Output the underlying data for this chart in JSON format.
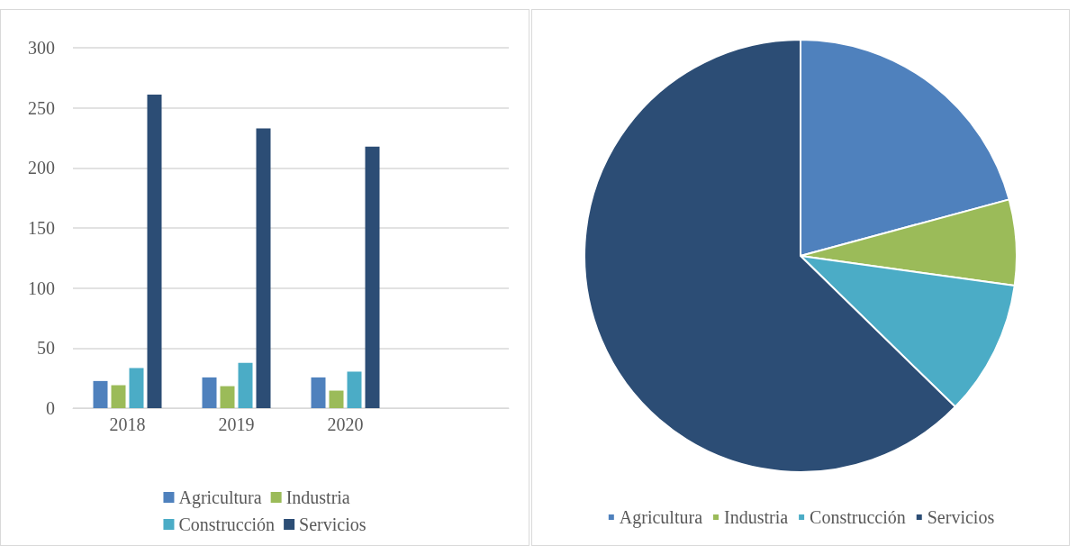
{
  "chart_data": [
    {
      "type": "bar",
      "categories": [
        "2018",
        "2019",
        "2020",
        null
      ],
      "series": [
        {
          "name": "Agricultura",
          "color": "#4f81bd",
          "values": [
            22.6,
            25.6,
            25.6,
            null
          ]
        },
        {
          "name": "Industria",
          "color": "#9bbb59",
          "values": [
            19.1,
            18.3,
            14.6,
            null
          ]
        },
        {
          "name": "Construcción",
          "color": "#4bacc6",
          "values": [
            33.4,
            37.7,
            30.4,
            null
          ]
        },
        {
          "name": "Servicios",
          "color": "#2c4d75",
          "values": [
            261,
            232.9,
            217.6,
            null
          ]
        }
      ],
      "ylim": [
        0,
        300
      ],
      "yticks": [
        0,
        50,
        100,
        150,
        200,
        250,
        300
      ],
      "grid": "y",
      "legend": "bottom"
    },
    {
      "type": "pie",
      "categories": [
        "Agricultura",
        "Industria",
        "Construcción",
        "Servicios"
      ],
      "values": [
        20.8,
        6.4,
        10.1,
        62.7
      ],
      "colors": [
        "#4f81bd",
        "#9bbb59",
        "#4bacc6",
        "#2c4d75"
      ],
      "legend": "bottom"
    }
  ]
}
